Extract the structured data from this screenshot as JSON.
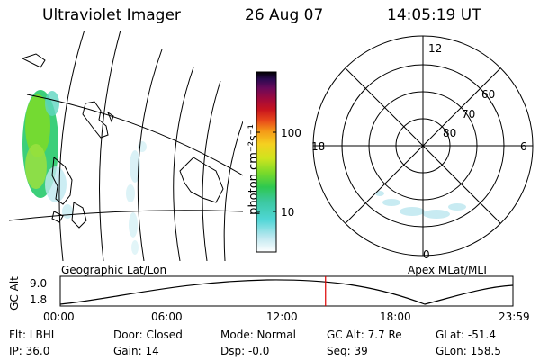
{
  "header": {
    "instrument": "Ultraviolet Imager",
    "date": "26 Aug 07",
    "time": "14:05:19 UT"
  },
  "colorbar": {
    "unit_label": "photon cm⁻²s⁻¹",
    "ticks": [
      "100",
      "10"
    ],
    "scale": "log",
    "colors": [
      "#ffffff",
      "#bfe8f0",
      "#4fd6d6",
      "#3cc8a0",
      "#2ec850",
      "#7ada2a",
      "#cfe41e",
      "#f5d020",
      "#f59a18",
      "#e8491a",
      "#c8141e",
      "#a00a3c",
      "#6a0a5a",
      "#2a0a50",
      "#000000"
    ]
  },
  "polar_plot": {
    "mlt_labels": [
      "12",
      "18",
      "6",
      "0"
    ],
    "mlat_labels": [
      "60",
      "70",
      "80"
    ]
  },
  "map_labels": {
    "left": "Geographic Lat/Lon",
    "right": "Apex MLat/MLT"
  },
  "altitude_plot": {
    "ylabel": "GC Alt",
    "yticks": [
      "9.0",
      "1.8"
    ],
    "xticks": [
      "00:00",
      "06:00",
      "12:00",
      "18:00",
      "23:59"
    ],
    "current_time_fraction": 0.586,
    "current_marker_color": "#dd0000"
  },
  "status": {
    "filter": "Flt: LBHL",
    "ip": "IP: 36.0",
    "door": "Door: Closed",
    "gain": "Gain: 14",
    "mode": "Mode: Normal",
    "dsp": "Dsp:   -0.0",
    "gc_alt": "GC Alt: 7.7 Re",
    "seq": "Seq: 39",
    "glat": "GLat: -51.4",
    "glon": "GLon: 158.5"
  }
}
